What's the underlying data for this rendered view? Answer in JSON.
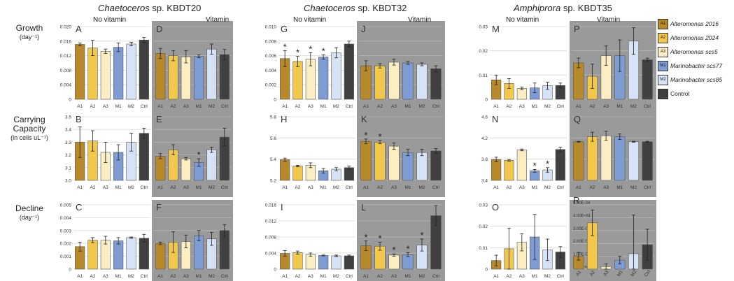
{
  "columns": [
    {
      "italic": "Chaetoceros",
      "rest": " sp. KBDT20"
    },
    {
      "italic": "Chaetoceros",
      "rest": " sp. KBDT32"
    },
    {
      "italic": "Amphiprora",
      "rest": " sp. KBDT35"
    }
  ],
  "rows": [
    {
      "label": "Growth",
      "unit": "(day⁻¹)"
    },
    {
      "label_line1": "Carrying",
      "label_line2": "Capacity",
      "unit": "(ln cells uL⁻¹)"
    },
    {
      "label": "Decline",
      "unit": "(day⁻¹)"
    }
  ],
  "condition_labels": {
    "no_vitamin": "No vitamin",
    "vitamin": "Vitamin"
  },
  "legend": [
    {
      "code": "A1",
      "label": "Alteromonas 2016",
      "italic": true,
      "color": "#b8892b"
    },
    {
      "code": "A2",
      "label": "Alteromonas 2024",
      "italic": true,
      "color": "#f1c84b"
    },
    {
      "code": "A3",
      "label": "Alteromonas scs5",
      "italic": true,
      "color": "#fbeec2"
    },
    {
      "code": "M1",
      "label": "Marinobacter scs77",
      "italic": true,
      "color": "#7d9cd3"
    },
    {
      "code": "M2",
      "label": "Marinobacter scs85",
      "italic": true,
      "color": "#d6e2f5"
    },
    {
      "code": "Ctrl",
      "label": "Control",
      "italic": false,
      "color": "#404040"
    }
  ],
  "colors": {
    "vitamin_background": "#9a9a9a",
    "no_vitamin_background": "#ffffff",
    "gridline": "#d9d9d9"
  },
  "chart_data": [
    {
      "panel": "A",
      "type": "bar",
      "column": 1,
      "row": 1,
      "condition": "No vitamin",
      "categories": [
        "A1",
        "A2",
        "A3",
        "M1",
        "M2",
        "Ctrl"
      ],
      "values": [
        0.0151,
        0.0141,
        0.0132,
        0.0143,
        0.0152,
        0.0163
      ],
      "errors": [
        0.0004,
        0.0021,
        0.0006,
        0.0012,
        0.0005,
        0.0007
      ],
      "ylim": [
        0,
        0.02
      ],
      "ticks": [
        "0",
        "0.004",
        "0.008",
        "0.012",
        "0.016",
        "0.020"
      ],
      "stars": []
    },
    {
      "panel": "D",
      "type": "bar",
      "column": 1,
      "row": 1,
      "condition": "Vitamin",
      "categories": [
        "A1",
        "A2",
        "A3",
        "M1",
        "M2",
        "Ctrl"
      ],
      "values": [
        0.0126,
        0.012,
        0.0117,
        0.0118,
        0.0138,
        0.0123
      ],
      "errors": [
        0.0014,
        0.0014,
        0.0017,
        0.0004,
        0.0014,
        0.0014
      ],
      "ylim": [
        0,
        0.02
      ],
      "ticks": [],
      "stars": []
    },
    {
      "panel": "G",
      "type": "bar",
      "column": 2,
      "row": 1,
      "condition": "No vitamin",
      "categories": [
        "A1",
        "A2",
        "A3",
        "M1",
        "M2",
        "Ctrl"
      ],
      "values": [
        0.0056,
        0.0052,
        0.0055,
        0.0058,
        0.0064,
        0.0076
      ],
      "errors": [
        0.0011,
        0.0007,
        0.0009,
        0.0003,
        0.0007,
        0.0004
      ],
      "ylim": [
        0,
        0.01
      ],
      "ticks": [
        "0",
        "0.002",
        "0.004",
        "0.006",
        "0.008",
        "0.010"
      ],
      "stars": [
        0,
        1,
        2,
        3
      ]
    },
    {
      "panel": "J",
      "type": "bar",
      "column": 2,
      "row": 1,
      "condition": "Vitamin",
      "categories": [
        "A1",
        "A2",
        "A3",
        "M1",
        "M2",
        "Ctrl"
      ],
      "values": [
        0.0046,
        0.0046,
        0.0051,
        0.005,
        0.0048,
        0.0042
      ],
      "errors": [
        0.0007,
        0.0003,
        0.0004,
        0.0002,
        0.0002,
        0.0004
      ],
      "ylim": [
        0,
        0.01
      ],
      "ticks": [],
      "stars": []
    },
    {
      "panel": "M",
      "type": "bar",
      "column": 3,
      "row": 1,
      "condition": "No vitamin",
      "categories": [
        "A1",
        "A2",
        "A3",
        "M1",
        "M2",
        "Ctrl"
      ],
      "values": [
        0.008,
        0.0065,
        0.0045,
        0.0047,
        0.0056,
        0.0057
      ],
      "errors": [
        0.002,
        0.002,
        0.0005,
        0.002,
        0.0015,
        0.001
      ],
      "ylim": [
        0,
        0.03
      ],
      "ticks": [
        "0",
        "0.01",
        "0.02",
        "0.03"
      ],
      "stars": []
    },
    {
      "panel": "P",
      "type": "bar",
      "column": 3,
      "row": 1,
      "condition": "Vitamin",
      "categories": [
        "A1",
        "A2",
        "A3",
        "M1",
        "M2",
        "Ctrl"
      ],
      "values": [
        0.015,
        0.0095,
        0.018,
        0.018,
        0.024,
        0.0163
      ],
      "errors": [
        0.002,
        0.005,
        0.004,
        0.0065,
        0.0055,
        0.0007
      ],
      "ylim": [
        0,
        0.03
      ],
      "ticks": [],
      "stars": []
    },
    {
      "panel": "B",
      "type": "bar",
      "column": 1,
      "row": 2,
      "condition": "No vitamin",
      "categories": [
        "A1",
        "A2",
        "A3",
        "M1",
        "M2",
        "Ctrl"
      ],
      "values": [
        3.3,
        3.31,
        3.22,
        3.22,
        3.3,
        3.37
      ],
      "errors": [
        0.12,
        0.08,
        0.08,
        0.06,
        0.07,
        0.04
      ],
      "ylim": [
        3.0,
        3.5
      ],
      "ticks": [
        "3.0",
        "3.1",
        "3.2",
        "3.3",
        "3.4",
        "3.5"
      ],
      "stars": []
    },
    {
      "panel": "E",
      "type": "bar",
      "column": 1,
      "row": 2,
      "condition": "Vitamin",
      "categories": [
        "A1",
        "A2",
        "A3",
        "M1",
        "M2",
        "Ctrl"
      ],
      "values": [
        3.19,
        3.24,
        3.17,
        3.14,
        3.24,
        3.34
      ],
      "errors": [
        0.02,
        0.04,
        0.01,
        0.03,
        0.02,
        0.07
      ],
      "ylim": [
        3.0,
        3.5
      ],
      "ticks": [],
      "stars": [
        3
      ]
    },
    {
      "panel": "H",
      "type": "bar",
      "column": 2,
      "row": 2,
      "condition": "No vitamin",
      "categories": [
        "A1",
        "A2",
        "A3",
        "M1",
        "M2",
        "Ctrl"
      ],
      "values": [
        5.46,
        5.38,
        5.39,
        5.32,
        5.34,
        5.36
      ],
      "errors": [
        0.02,
        0.01,
        0.03,
        0.03,
        0.02,
        0.02
      ],
      "ylim": [
        5.2,
        6.0
      ],
      "ticks": [
        "5.2",
        "5.4",
        "5.6",
        "5.8"
      ],
      "stars": []
    },
    {
      "panel": "K",
      "type": "bar",
      "column": 2,
      "row": 2,
      "condition": "Vitamin",
      "categories": [
        "A1",
        "A2",
        "A3",
        "M1",
        "M2",
        "Ctrl"
      ],
      "values": [
        5.69,
        5.68,
        5.63,
        5.55,
        5.55,
        5.57
      ],
      "errors": [
        0.03,
        0.02,
        0.04,
        0.04,
        0.04,
        0.03
      ],
      "ylim": [
        5.2,
        6.0
      ],
      "ticks": [],
      "stars": [
        0,
        1
      ]
    },
    {
      "panel": "N",
      "type": "bar",
      "column": 3,
      "row": 2,
      "condition": "No vitamin",
      "categories": [
        "A1",
        "A2",
        "A3",
        "M1",
        "M2",
        "Ctrl"
      ],
      "values": [
        3.86,
        3.84,
        4.07,
        3.61,
        3.63,
        4.08
      ],
      "errors": [
        0.05,
        0.02,
        0.02,
        0.03,
        0.05,
        0.05
      ],
      "ylim": [
        3.4,
        4.8
      ],
      "ticks": [
        "3.4",
        "3.8",
        "4.2",
        "4.6"
      ],
      "stars": [
        3,
        4
      ]
    },
    {
      "panel": "Q",
      "type": "bar",
      "column": 3,
      "row": 2,
      "condition": "Vitamin",
      "categories": [
        "A1",
        "A2",
        "A3",
        "M1",
        "M2",
        "Ctrl"
      ],
      "values": [
        4.25,
        4.36,
        4.38,
        4.36,
        4.25,
        4.25
      ],
      "errors": [
        0.01,
        0.1,
        0.1,
        0.06,
        0.01,
        0.01
      ],
      "ylim": [
        3.4,
        4.8
      ],
      "ticks": [],
      "stars": []
    },
    {
      "panel": "C",
      "type": "bar",
      "column": 1,
      "row": 3,
      "condition": "No vitamin",
      "categories": [
        "A1",
        "A2",
        "A3",
        "M1",
        "M2",
        "Ctrl"
      ],
      "values": [
        0.00175,
        0.00225,
        0.00225,
        0.0022,
        0.00245,
        0.0024
      ],
      "errors": [
        0.00035,
        0.0002,
        0.0003,
        0.00025,
        5e-05,
        0.0003
      ],
      "ylim": [
        0,
        0.005
      ],
      "ticks": [
        "0",
        "0.001",
        "0.002",
        "0.003",
        "0.004",
        "0.005"
      ],
      "stars": []
    },
    {
      "panel": "F",
      "type": "bar",
      "column": 1,
      "row": 3,
      "condition": "Vitamin",
      "categories": [
        "A1",
        "A2",
        "A3",
        "M1",
        "M2",
        "Ctrl"
      ],
      "values": [
        0.002,
        0.0021,
        0.00215,
        0.0026,
        0.00235,
        0.003
      ],
      "errors": [
        0.0001,
        0.0008,
        0.0005,
        0.0004,
        0.0005,
        0.00045
      ],
      "ylim": [
        0,
        0.005
      ],
      "ticks": [],
      "stars": []
    },
    {
      "panel": "I",
      "type": "bar",
      "column": 2,
      "row": 3,
      "condition": "No vitamin",
      "categories": [
        "A1",
        "A2",
        "A3",
        "M1",
        "M2",
        "Ctrl"
      ],
      "values": [
        0.0039,
        0.0041,
        0.0036,
        0.0034,
        0.0033,
        0.0033
      ],
      "errors": [
        0.0007,
        0.0004,
        0.0004,
        0.0001,
        0.0002,
        0.0002
      ],
      "ylim": [
        0,
        0.016
      ],
      "ticks": [
        "0",
        "0.004",
        "0.008",
        "0.012",
        "0.016"
      ],
      "stars": []
    },
    {
      "panel": "L",
      "type": "bar",
      "column": 2,
      "row": 3,
      "condition": "Vitamin",
      "categories": [
        "A1",
        "A2",
        "A3",
        "M1",
        "M2",
        "Ctrl"
      ],
      "values": [
        0.0058,
        0.0057,
        0.0035,
        0.0036,
        0.006,
        0.0133
      ],
      "errors": [
        0.0012,
        0.001,
        0.0003,
        0.0005,
        0.0015,
        0.0025
      ],
      "ylim": [
        0,
        0.016
      ],
      "ticks": [],
      "stars": [
        0,
        1,
        2,
        3,
        4
      ]
    },
    {
      "panel": "O",
      "type": "bar",
      "column": 3,
      "row": 3,
      "condition": "No vitamin",
      "categories": [
        "A1",
        "A2",
        "A3",
        "M1",
        "M2",
        "Ctrl"
      ],
      "values": [
        0.004,
        0.0095,
        0.0125,
        0.015,
        0.009,
        0.008
      ],
      "errors": [
        0.0025,
        0.0095,
        0.004,
        0.0105,
        0.005,
        0.0025
      ],
      "ylim": [
        0,
        0.03
      ],
      "ticks": [
        "0",
        "0.01",
        "0.02",
        "0.03"
      ],
      "stars": []
    },
    {
      "panel": "R",
      "type": "bar",
      "column": 3,
      "row": 3,
      "condition": "Vitamin",
      "categories": [
        "A1",
        "A2",
        "A3",
        "M1",
        "M2",
        "Ctrl"
      ],
      "values": [
        0.0001,
        0.00036,
        2e-05,
        7e-05,
        0.00012,
        0.00019
      ],
      "errors": [
        3e-05,
        0.0001,
        2e-05,
        3e-05,
        0.0003,
        0.00012
      ],
      "ylim": [
        0,
        0.0005
      ],
      "ticks": [
        "0.00E+00",
        "1.00E-04",
        "2.00E-04",
        "3.00E-04",
        "4.00E-04",
        "5.00E-04"
      ],
      "stars": []
    }
  ]
}
